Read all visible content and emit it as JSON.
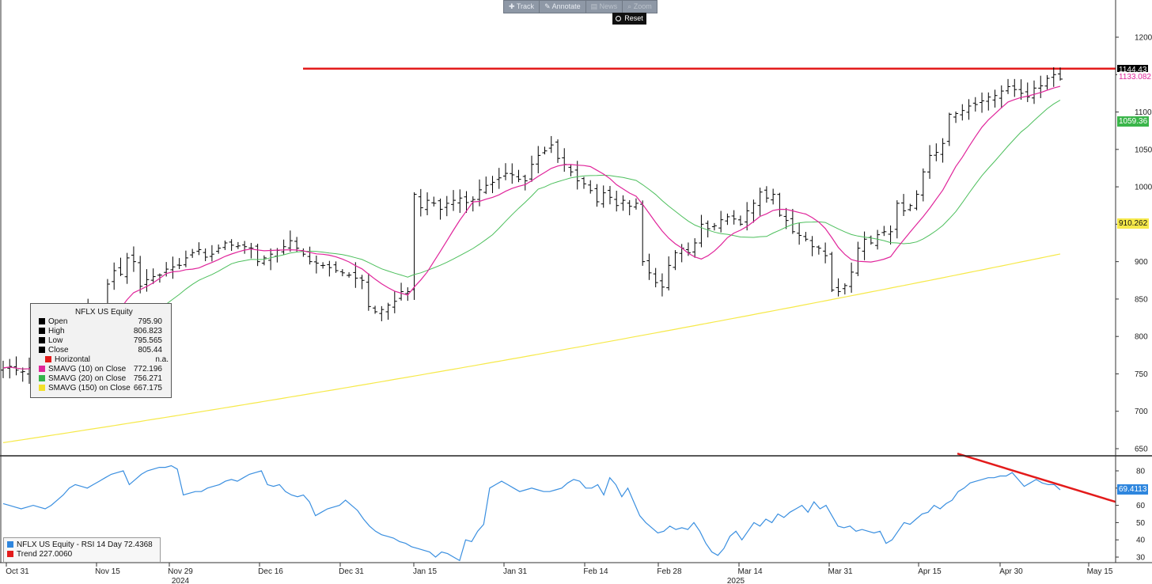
{
  "toolbar": {
    "track": "Track",
    "annotate": "Annotate",
    "news": "News",
    "zoom": "Zoom",
    "reset": "Reset"
  },
  "legend": {
    "title": "NFLX US Equity",
    "rows": [
      {
        "label": "Open",
        "value": "795.90",
        "color": "#000000"
      },
      {
        "label": "High",
        "value": "806.823",
        "color": "#000000"
      },
      {
        "label": "Low",
        "value": "795.565",
        "color": "#000000"
      },
      {
        "label": "Close",
        "value": "805.44",
        "color": "#000000"
      },
      {
        "label": "Horizontal",
        "value": "n.a.",
        "color": "#e31b1b"
      },
      {
        "label": "SMAVG (10)  on Close",
        "value": "772.196",
        "color": "#e0259b"
      },
      {
        "label": "SMAVG (20)  on Close",
        "value": "756.271",
        "color": "#33b44a"
      },
      {
        "label": "SMAVG (150)  on Close",
        "value": "667.175",
        "color": "#f3e02a"
      }
    ]
  },
  "rsi_legend": {
    "rows": [
      {
        "label": "NFLX US Equity - RSI 14 Day",
        "value": "72.4368",
        "color": "#2e86de"
      },
      {
        "label": "Trend",
        "value": "227.0060",
        "color": "#e31b1b"
      }
    ]
  },
  "price_tags": {
    "last": "1144.43",
    "sma10": "1133.082",
    "sma20": "1059.36",
    "sma150": "910.262",
    "rsi": "69.4113"
  },
  "colors": {
    "price_bars": "#000000",
    "sma10": "#e0259b",
    "sma20": "#4cbf5c",
    "sma150": "#f6e94a",
    "horizontal": "#e31b1b",
    "rsi": "#3a8fe0",
    "trend": "#e31b1b"
  },
  "chart_data": [
    {
      "type": "ohlc",
      "title": "NFLX US Equity",
      "x_labels": [
        "Oct 31",
        "Nov 15",
        "Nov 29",
        "Dec 16",
        "Dec 31",
        "Jan 15",
        "Jan 31",
        "Feb 14",
        "Feb 28",
        "Mar 14",
        "Mar 31",
        "Apr 15",
        "Apr 30",
        "May 15"
      ],
      "year_labels": [
        {
          "label": "2024",
          "at": "Nov 29"
        },
        {
          "label": "2025",
          "at": "Mar 14"
        }
      ],
      "ylim": [
        640,
        1230
      ],
      "y_ticks": [
        650,
        700,
        750,
        800,
        850,
        900,
        950,
        1000,
        1050,
        1100,
        1150,
        1200
      ],
      "horizontal_line": 1158,
      "closes": [
        758,
        760,
        755,
        753,
        758,
        762,
        760,
        766,
        764,
        786,
        808,
        826,
        835,
        830,
        822,
        826,
        870,
        888,
        883,
        905,
        900,
        867,
        876,
        880,
        882,
        890,
        893,
        895,
        905,
        912,
        916,
        906,
        910,
        918,
        925,
        922,
        921,
        920,
        918,
        900,
        905,
        910,
        915,
        920,
        928,
        918,
        910,
        900,
        898,
        895,
        892,
        888,
        885,
        882,
        878,
        875,
        840,
        833,
        836,
        842,
        847,
        860,
        860,
        990,
        972,
        982,
        978,
        970,
        978,
        982,
        985,
        979,
        983,
        996,
        1002,
        1006,
        1012,
        1018,
        1016,
        1010,
        1008,
        1030,
        1042,
        1048,
        1056,
        1038,
        1030,
        1020,
        1008,
        1004,
        995,
        980,
        992,
        986,
        975,
        982,
        974,
        978,
        900,
        885,
        872,
        866,
        895,
        912,
        918,
        912,
        925,
        950,
        944,
        948,
        956,
        960,
        957,
        950,
        968,
        978,
        993,
        985,
        990,
        962,
        955,
        940,
        935,
        930,
        920,
        918,
        908,
        862,
        860,
        868,
        886,
        918,
        930,
        925,
        936,
        940,
        940,
        978,
        968,
        975,
        990,
        1020,
        1042,
        1046,
        1058,
        1097,
        1098,
        1102,
        1108,
        1110,
        1115,
        1120,
        1122,
        1128,
        1134,
        1130,
        1125,
        1120,
        1132,
        1135,
        1145,
        1150,
        1144
      ],
      "sma10_note": "10-day simple moving average of closes",
      "sma20_note": "20-day simple moving average of closes",
      "sma150": {
        "start": 658,
        "end": 910.262
      },
      "grid": false
    },
    {
      "type": "line",
      "title": "NFLX US Equity - RSI 14 Day",
      "ylim": [
        25,
        88
      ],
      "y_ticks": [
        30,
        40,
        50,
        60,
        70,
        80
      ],
      "series": [
        {
          "name": "NFLX US Equity - RSI 14 Day",
          "values": [
            61,
            60,
            59,
            58,
            59,
            60,
            59,
            58,
            60,
            63,
            66,
            70,
            72,
            71,
            70,
            72,
            74,
            76,
            78,
            79,
            80,
            72,
            75,
            78,
            80,
            81,
            82,
            82,
            83,
            81,
            66,
            67,
            68,
            68,
            70,
            71,
            72,
            74,
            75,
            74,
            76,
            78,
            79,
            80,
            72,
            71,
            72,
            68,
            66,
            65,
            66,
            62,
            54,
            56,
            58,
            59,
            60,
            63,
            60,
            57,
            52,
            48,
            45,
            43,
            42,
            41,
            39,
            38,
            36,
            35,
            34,
            33,
            30,
            33,
            32,
            30,
            28,
            40,
            39,
            45,
            49,
            70,
            72,
            74,
            72,
            70,
            68,
            69,
            70,
            69,
            68,
            68,
            69,
            70,
            73,
            75,
            74,
            70,
            70,
            72,
            66,
            76,
            72,
            65,
            70,
            62,
            54,
            50,
            47,
            44,
            45,
            48,
            46,
            47,
            46,
            50,
            45,
            38,
            33,
            31,
            35,
            42,
            45,
            40,
            45,
            50,
            48,
            52,
            50,
            55,
            53,
            56,
            58,
            60,
            56,
            62,
            58,
            60,
            54,
            48,
            47,
            48,
            45,
            46,
            45,
            44,
            45,
            38,
            40,
            45,
            50,
            49,
            52,
            55,
            56,
            60,
            58,
            61,
            63,
            68,
            70,
            73,
            74,
            75,
            76,
            76,
            77,
            77,
            79,
            75,
            71,
            73,
            75,
            73,
            72,
            72,
            69
          ]
        },
        {
          "name": "Trend",
          "values": [
            90,
            62
          ]
        }
      ]
    }
  ]
}
